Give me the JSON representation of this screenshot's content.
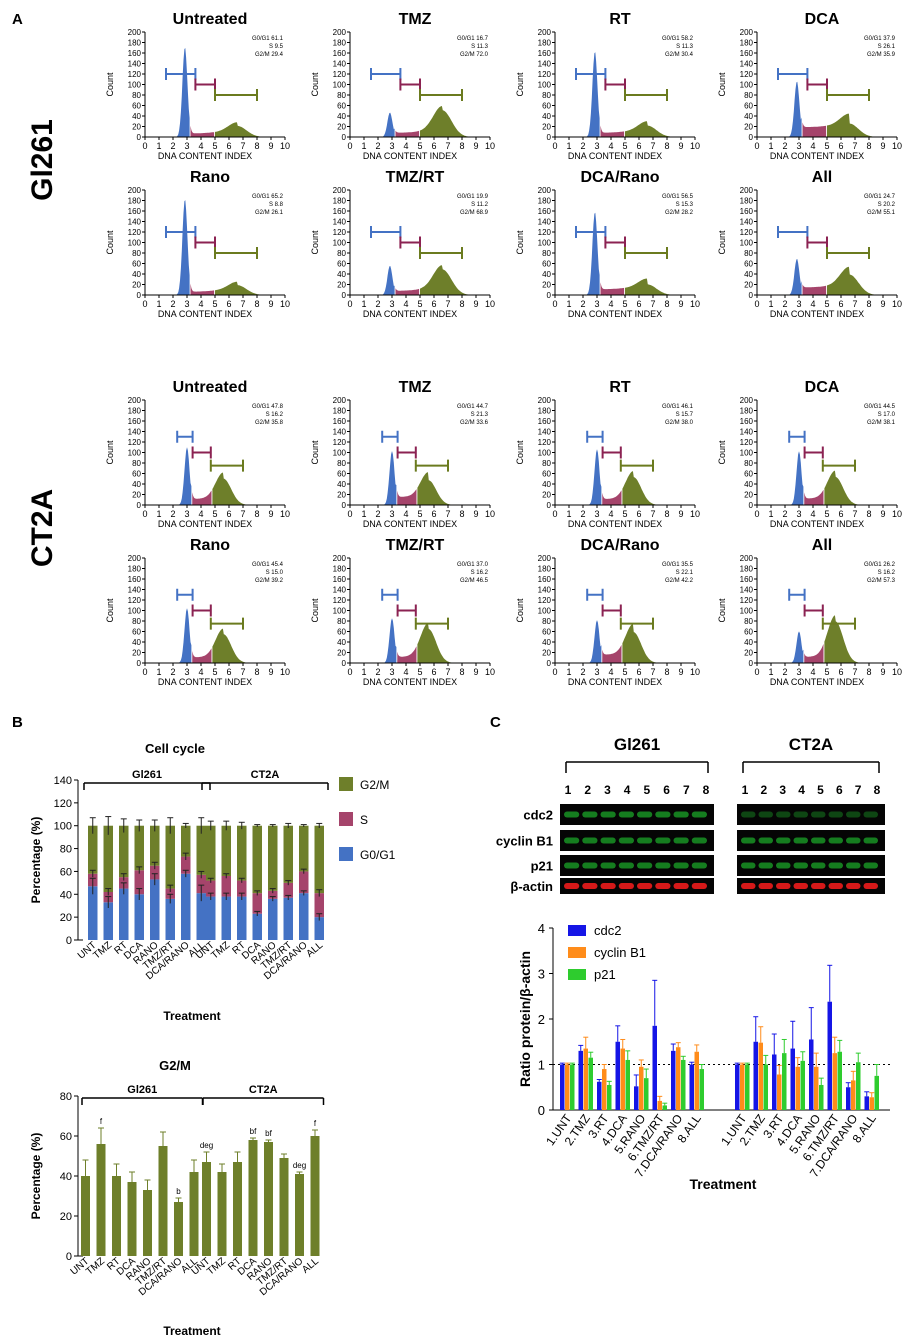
{
  "panel_labels": {
    "a": "A",
    "b": "B",
    "c": "C"
  },
  "cell_lines": {
    "gl261": "Gl261",
    "ct2a": "CT2A"
  },
  "flow": {
    "ylabel": "Count",
    "xlabel": "DNA CONTENT INDEX",
    "yticks": [
      "0",
      "20",
      "40",
      "60",
      "80",
      "100",
      "120",
      "140",
      "160",
      "180",
      "200"
    ],
    "xticks": [
      "0",
      "1",
      "2",
      "3",
      "4",
      "5",
      "6",
      "7",
      "8",
      "9",
      "10"
    ],
    "colors": {
      "g0g1": "#4472C4",
      "s": "#A5446B",
      "g2m": "#6E7F2A",
      "g0g1_gate": "#4472C4",
      "s_gate": "#8B2252",
      "g2m_gate": "#6B7B1F"
    },
    "gl261": [
      {
        "title": "Untreated",
        "stats": [
          "G0/G1 61.1",
          "S 9.5",
          "G2/M 29.4"
        ]
      },
      {
        "title": "TMZ",
        "stats": [
          "G0/G1 16.7",
          "S 11.3",
          "G2/M 72.0"
        ]
      },
      {
        "title": "RT",
        "stats": [
          "G0/G1 58.2",
          "S 11.3",
          "G2/M 30.4"
        ]
      },
      {
        "title": "DCA",
        "stats": [
          "G0/G1 37.9",
          "S 26.1",
          "G2/M 35.9"
        ]
      },
      {
        "title": "Rano",
        "stats": [
          "G0/G1 65.2",
          "S 8.8",
          "G2/M 26.1"
        ]
      },
      {
        "title": "TMZ/RT",
        "stats": [
          "G0/G1 19.9",
          "S 11.2",
          "G2/M 68.9"
        ]
      },
      {
        "title": "DCA/Rano",
        "stats": [
          "G0/G1 56.5",
          "S 15.3",
          "G2/M 28.2"
        ]
      },
      {
        "title": "All",
        "stats": [
          "G0/G1 24.7",
          "S 20.2",
          "G2/M 55.1"
        ]
      }
    ],
    "ct2a": [
      {
        "title": "Untreated",
        "stats": [
          "G0/G1 47.8",
          "S 16.2",
          "G2/M 35.8"
        ]
      },
      {
        "title": "TMZ",
        "stats": [
          "G0/G1 44.7",
          "S 21.3",
          "G2/M 33.6"
        ]
      },
      {
        "title": "RT",
        "stats": [
          "G0/G1 46.1",
          "S 15.7",
          "G2/M 38.0"
        ]
      },
      {
        "title": "DCA",
        "stats": [
          "G0/G1 44.5",
          "S 17.0",
          "G2/M 38.1"
        ]
      },
      {
        "title": "Rano",
        "stats": [
          "G0/G1 45.4",
          "S 15.0",
          "G2/M 39.2"
        ]
      },
      {
        "title": "TMZ/RT",
        "stats": [
          "G0/G1 37.0",
          "S 16.2",
          "G2/M 46.5"
        ]
      },
      {
        "title": "DCA/Rano",
        "stats": [
          "G0/G1 35.5",
          "S 22.1",
          "G2/M 42.2"
        ]
      },
      {
        "title": "All",
        "stats": [
          "G0/G1 26.2",
          "S 16.2",
          "G2/M 57.3"
        ]
      }
    ]
  },
  "chart_data": [
    {
      "type": "bar",
      "stacked": true,
      "title": "Cell cycle",
      "xlabel": "Treatment",
      "ylabel": "Percentage (%)",
      "ylim": [
        0,
        140
      ],
      "yticks": [
        "0",
        "20",
        "40",
        "60",
        "80",
        "100",
        "120",
        "140"
      ],
      "groups": [
        "Gl261",
        "CT2A"
      ],
      "categories": [
        "UNT",
        "TMZ",
        "RT",
        "DCA",
        "RANO",
        "TMZ/RT",
        "DCA/RANO",
        "ALL"
      ],
      "legend": [
        "G2/M",
        "S",
        "G0/G1"
      ],
      "colors": {
        "G0/G1": "#4472C4",
        "S": "#A5446B",
        "G2/M": "#6E7F2A"
      },
      "series": [
        {
          "name": "G0/G1",
          "group": "Gl261",
          "values": [
            47,
            33,
            45,
            40,
            53,
            36,
            58,
            41
          ],
          "errors": [
            7,
            5,
            5,
            5,
            5,
            4,
            3,
            7
          ]
        },
        {
          "name": "S",
          "group": "Gl261",
          "values": [
            11,
            9,
            10,
            21,
            12,
            9,
            15,
            16
          ],
          "errors": [
            3,
            3,
            3,
            3,
            3,
            3,
            3,
            3
          ]
        },
        {
          "name": "G2/M",
          "group": "Gl261",
          "values": [
            42,
            58,
            45,
            39,
            35,
            55,
            27,
            43
          ],
          "errors": [
            7,
            8,
            6,
            5,
            5,
            7,
            2,
            7
          ]
        },
        {
          "name": "G0/G1",
          "group": "CT2A",
          "values": [
            38,
            38,
            38,
            23,
            36,
            37,
            41,
            20
          ],
          "errors": [
            3,
            3,
            3,
            2,
            2,
            2,
            2,
            3
          ]
        },
        {
          "name": "S",
          "group": "CT2A",
          "values": [
            14,
            18,
            14,
            18,
            7,
            13,
            19,
            21
          ],
          "errors": [
            2,
            2,
            2,
            2,
            2,
            2,
            2,
            3
          ]
        },
        {
          "name": "G2/M",
          "group": "CT2A",
          "values": [
            48,
            44,
            48,
            59,
            57,
            50,
            40,
            59
          ],
          "errors": [
            4,
            4,
            3,
            1,
            1,
            2,
            1,
            2
          ]
        }
      ]
    },
    {
      "type": "bar",
      "title": "G2/M",
      "xlabel": "Treatment",
      "ylabel": "Percentage (%)",
      "ylim": [
        0,
        80
      ],
      "yticks": [
        "0",
        "20",
        "40",
        "60",
        "80"
      ],
      "groups": [
        "Gl261",
        "CT2A"
      ],
      "categories": [
        "UNT",
        "TMZ",
        "RT",
        "DCA",
        "RANO",
        "TMZ/RT",
        "DCA/RANO",
        "ALL"
      ],
      "series": [
        {
          "name": "Gl261",
          "values": [
            40,
            56,
            40,
            37,
            33,
            55,
            27,
            42
          ],
          "errors": [
            8,
            8,
            6,
            5,
            5,
            7,
            2,
            6
          ],
          "labels": [
            "",
            "f",
            "",
            "",
            "",
            "",
            "b",
            ""
          ]
        },
        {
          "name": "CT2A",
          "values": [
            47,
            42,
            47,
            58,
            57,
            49,
            41,
            60
          ],
          "errors": [
            5,
            4,
            5,
            1,
            1,
            2,
            1,
            3
          ],
          "labels": [
            "deg",
            "",
            "",
            "bf",
            "bf",
            "",
            "deg",
            "f"
          ]
        }
      ]
    },
    {
      "type": "bar",
      "title": "",
      "xlabel": "Treatment",
      "ylabel": "Ratio protein/β-actin",
      "ylim": [
        0,
        4
      ],
      "yticks": [
        "0",
        "1",
        "2",
        "3",
        "4"
      ],
      "reference_line": 1,
      "groups": [
        "Gl261",
        "CT2A"
      ],
      "categories": [
        "1.UNT",
        "2.TMZ",
        "3.RT",
        "4.DCA",
        "5.RANO",
        "6.TMZ/RT",
        "7.DCA/RANO",
        "8.ALL"
      ],
      "colors": {
        "cdc2": "#1515E6",
        "cyclin B1": "#FF8C1A",
        "p21": "#2ECC2E"
      },
      "series": [
        {
          "name": "cdc2",
          "group": "Gl261",
          "values": [
            1.0,
            1.3,
            0.62,
            1.5,
            0.52,
            1.85,
            1.3,
            1.0
          ],
          "errors": [
            0.03,
            0.12,
            0.05,
            0.35,
            0.25,
            1.0,
            0.15,
            0.05
          ]
        },
        {
          "name": "cyclin B1",
          "group": "Gl261",
          "values": [
            1.0,
            1.35,
            0.9,
            1.35,
            0.95,
            0.2,
            1.38,
            1.28
          ],
          "errors": [
            0.03,
            0.25,
            0.1,
            0.2,
            0.15,
            0.1,
            0.1,
            0.15
          ]
        },
        {
          "name": "p21",
          "group": "Gl261",
          "values": [
            1.0,
            1.15,
            0.55,
            1.1,
            0.7,
            0.1,
            1.1,
            0.9
          ],
          "errors": [
            0.03,
            0.12,
            0.08,
            0.2,
            0.2,
            0.05,
            0.08,
            0.1
          ]
        },
        {
          "name": "cdc2",
          "group": "CT2A",
          "values": [
            1.0,
            1.5,
            1.22,
            1.35,
            1.55,
            2.38,
            0.5,
            0.3
          ],
          "errors": [
            0.03,
            0.55,
            0.45,
            0.6,
            0.7,
            0.8,
            0.1,
            0.1
          ]
        },
        {
          "name": "cyclin B1",
          "group": "CT2A",
          "values": [
            1.0,
            1.48,
            0.78,
            0.95,
            0.95,
            1.25,
            0.65,
            0.28
          ],
          "errors": [
            0.03,
            0.35,
            0.2,
            0.2,
            0.3,
            0.35,
            0.2,
            0.1
          ]
        },
        {
          "name": "p21",
          "group": "CT2A",
          "values": [
            1.0,
            1.0,
            1.25,
            1.08,
            0.55,
            1.28,
            1.05,
            0.75
          ],
          "errors": [
            0.03,
            0.2,
            0.3,
            0.2,
            0.15,
            0.25,
            0.2,
            0.25
          ]
        }
      ]
    }
  ],
  "blot": {
    "groups": [
      "Gl261",
      "CT2A"
    ],
    "lane_numbers": [
      "1",
      "2",
      "3",
      "4",
      "5",
      "6",
      "7",
      "8"
    ],
    "proteins": [
      "cdc2",
      "cyclin B1",
      "p21",
      "β-actin"
    ],
    "band_colors": {
      "green": "#1FBF2E",
      "red": "#E01A1A",
      "background": "#050505"
    }
  }
}
